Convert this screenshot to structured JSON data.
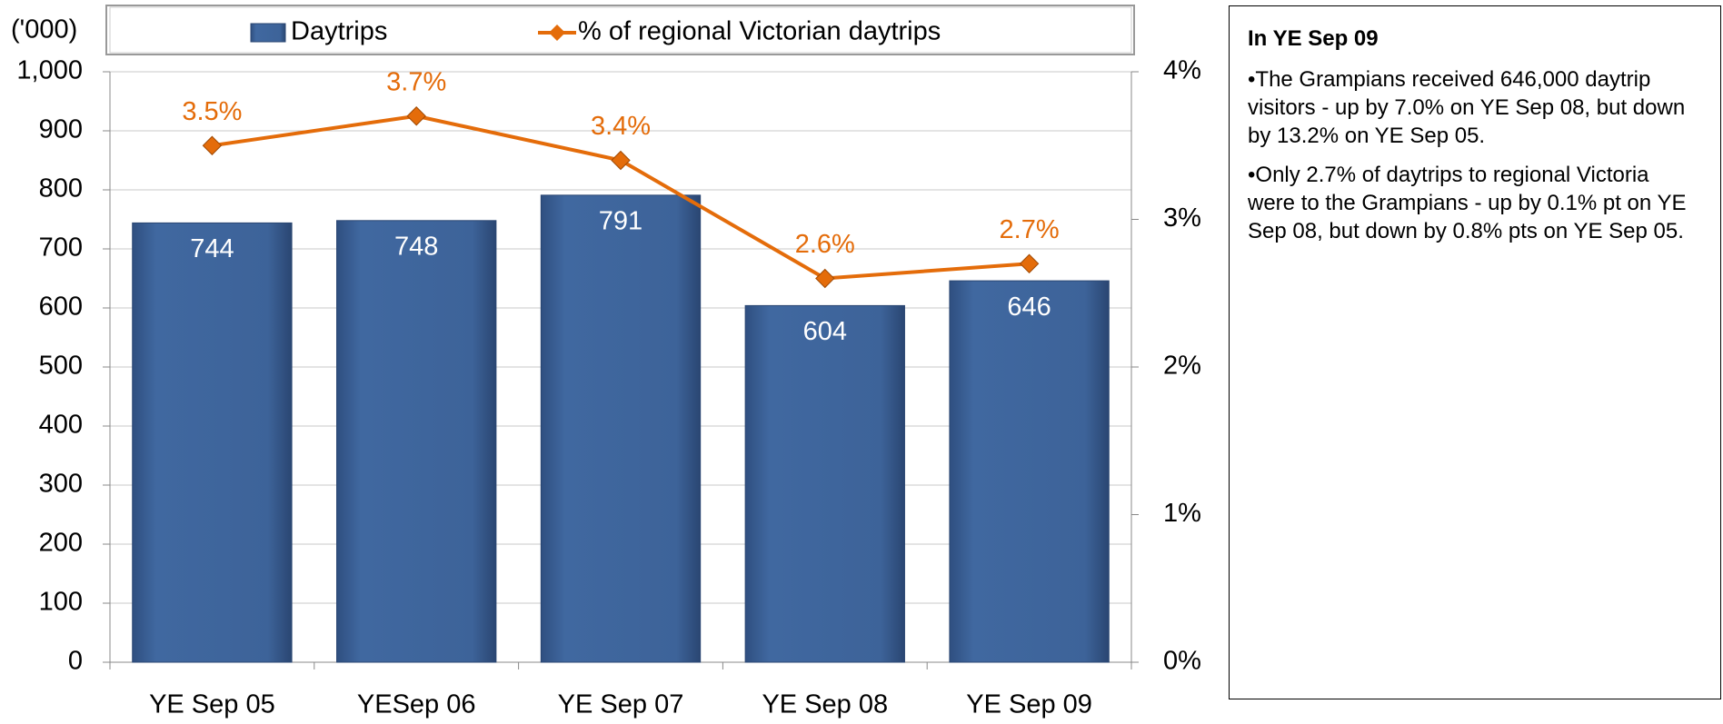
{
  "chart_data": {
    "type": "bar",
    "categories": [
      "YE Sep 05",
      "YESep 06",
      "YE Sep 07",
      "YE Sep 08",
      "YE Sep 09"
    ],
    "y_label": "('000)",
    "series": [
      {
        "name": "Daytrips",
        "type": "bar",
        "color": "#3d6399",
        "values": [
          744,
          748,
          791,
          604,
          646
        ]
      },
      {
        "name": "% of regional Victorian daytrips",
        "type": "line",
        "axis": "y2",
        "color": "#e46c0a",
        "values": [
          3.5,
          3.7,
          3.4,
          2.6,
          2.7
        ],
        "value_labels": [
          "3.5%",
          "3.7%",
          "3.4%",
          "2.6%",
          "2.7%"
        ]
      }
    ],
    "ylim": [
      0,
      1000
    ],
    "yticks": [
      0,
      100,
      200,
      300,
      400,
      500,
      600,
      700,
      800,
      900,
      {
        "value": 1000,
        "label": "1,000"
      }
    ],
    "y2lim": [
      0,
      4
    ],
    "y2ticks": [
      {
        "value": 0,
        "label": "0%"
      },
      {
        "value": 1,
        "label": "1%"
      },
      {
        "value": 2,
        "label": "2%"
      },
      {
        "value": 3,
        "label": "3%"
      },
      {
        "value": 4,
        "label": "4%"
      }
    ],
    "grid": true,
    "legend": "top"
  },
  "text_panel": {
    "title": "In YE Sep 09",
    "bullets": [
      "•The Grampians received 646,000 daytrip visitors - up by 7.0% on YE Sep 08, but down by 13.2% on YE Sep 05.",
      "•Only 2.7% of daytrips to regional Victoria were to the Grampians - up by 0.1% pt on YE Sep 08, but down by 0.8% pts on YE Sep 05."
    ]
  }
}
